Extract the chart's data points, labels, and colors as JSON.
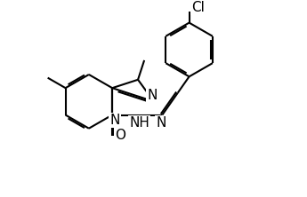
{
  "background": "#ffffff",
  "line_color": "#000000",
  "lw": 1.5,
  "dbo": 0.06,
  "fs": 10,
  "xlim": [
    0,
    10
  ],
  "ylim": [
    0,
    6.5
  ]
}
